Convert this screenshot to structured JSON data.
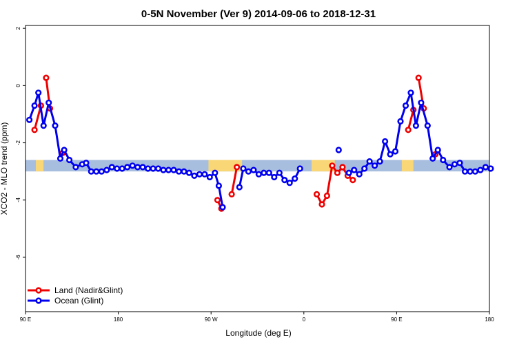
{
  "chart_data": {
    "type": "line",
    "title": "0-5N November (Ver 9)   2014-09-06 to 2018-12-31",
    "xlabel": "Longitude (deg E)",
    "ylabel": "XCO2 - MLO trend (ppm)",
    "xlim": [
      90,
      450
    ],
    "ylim": [
      -7.9,
      2.1
    ],
    "x_ticks": [
      {
        "value": 90,
        "label": "90 E"
      },
      {
        "value": 162,
        "label": "180"
      },
      {
        "value": 234,
        "label": "90 W"
      },
      {
        "value": 306,
        "label": "0"
      },
      {
        "value": 378,
        "label": "90 E"
      },
      {
        "value": 450,
        "label": "180"
      }
    ],
    "y_ticks": [
      {
        "value": 2,
        "label": "2"
      },
      {
        "value": 0,
        "label": "0"
      },
      {
        "value": -2,
        "label": "-2"
      },
      {
        "value": -4,
        "label": "-4"
      },
      {
        "value": -6,
        "label": "-6"
      }
    ],
    "grid": false,
    "legend_position": "bottom-left",
    "band": {
      "ymin": -3.0,
      "ymax": -2.6,
      "land_color": "#F9D776",
      "ocean_color": "#A7BEDF"
    },
    "band_land_segments": [
      [
        98,
        104
      ],
      [
        232,
        258
      ],
      [
        312,
        330
      ],
      [
        382,
        391
      ],
      [
        450,
        450
      ]
    ],
    "series": [
      {
        "name": "Land (Nadir&Glint)",
        "color": "#EE0000",
        "segments": [
          [
            [
              97,
              -1.55
            ],
            [
              102,
              -0.7
            ]
          ],
          [
            [
              106,
              0.27
            ],
            [
              109,
              -0.8
            ]
          ],
          [
            [
              119,
              -2.35
            ]
          ],
          [
            [
              239,
              -4.0
            ],
            [
              242,
              -4.3
            ]
          ],
          [
            [
              250,
              -3.8
            ],
            [
              254,
              -2.85
            ]
          ],
          [
            [
              316,
              -3.8
            ],
            [
              320,
              -4.15
            ],
            [
              324,
              -3.85
            ],
            [
              328,
              -2.8
            ],
            [
              332,
              -3.05
            ],
            [
              336,
              -2.85
            ],
            [
              340,
              -3.15
            ],
            [
              344,
              -3.3
            ]
          ],
          [
            [
              387,
              -1.55
            ],
            [
              391,
              -0.85
            ]
          ],
          [
            [
              395,
              0.27
            ],
            [
              399,
              -0.8
            ]
          ],
          [
            [
              408,
              -2.4
            ]
          ]
        ]
      },
      {
        "name": "Ocean (Glint)",
        "color": "#0000EE",
        "segments": [
          [
            [
              93,
              -1.2
            ],
            [
              97,
              -0.7
            ],
            [
              100,
              -0.25
            ],
            [
              104,
              -1.4
            ],
            [
              108,
              -0.6
            ],
            [
              113,
              -1.4
            ],
            [
              117,
              -2.55
            ],
            [
              120,
              -2.25
            ],
            [
              124,
              -2.6
            ],
            [
              129,
              -2.85
            ],
            [
              134,
              -2.75
            ],
            [
              137,
              -2.7
            ],
            [
              141,
              -3.0
            ],
            [
              145,
              -3.0
            ],
            [
              149,
              -3.0
            ],
            [
              153,
              -2.95
            ],
            [
              157,
              -2.85
            ],
            [
              161,
              -2.9
            ],
            [
              165,
              -2.9
            ],
            [
              169,
              -2.85
            ],
            [
              173,
              -2.8
            ],
            [
              177,
              -2.85
            ],
            [
              181,
              -2.85
            ],
            [
              185,
              -2.9
            ],
            [
              189,
              -2.9
            ],
            [
              193,
              -2.9
            ],
            [
              197,
              -2.95
            ],
            [
              201,
              -2.95
            ],
            [
              205,
              -2.95
            ],
            [
              209,
              -3.0
            ],
            [
              213,
              -3.0
            ],
            [
              217,
              -3.05
            ],
            [
              221,
              -3.15
            ],
            [
              225,
              -3.1
            ],
            [
              229,
              -3.1
            ],
            [
              233,
              -3.2
            ],
            [
              237,
              -3.05
            ],
            [
              240,
              -3.5
            ],
            [
              243,
              -4.25
            ]
          ],
          [
            [
              256,
              -3.55
            ],
            [
              259,
              -2.9
            ],
            [
              263,
              -3.0
            ],
            [
              267,
              -2.95
            ],
            [
              271,
              -3.1
            ],
            [
              275,
              -3.05
            ],
            [
              279,
              -3.05
            ],
            [
              283,
              -3.2
            ],
            [
              287,
              -3.05
            ],
            [
              291,
              -3.3
            ],
            [
              295,
              -3.4
            ],
            [
              299,
              -3.25
            ],
            [
              303,
              -2.9
            ]
          ],
          [
            [
              333,
              -2.25
            ]
          ],
          [
            [
              341,
              -3.05
            ],
            [
              345,
              -2.95
            ],
            [
              349,
              -3.1
            ],
            [
              353,
              -2.9
            ],
            [
              357,
              -2.65
            ],
            [
              361,
              -2.8
            ],
            [
              365,
              -2.65
            ],
            [
              369,
              -1.95
            ],
            [
              373,
              -2.4
            ],
            [
              377,
              -2.3
            ],
            [
              381,
              -1.25
            ],
            [
              385,
              -0.7
            ],
            [
              389,
              -0.25
            ],
            [
              393,
              -1.4
            ],
            [
              397,
              -0.6
            ],
            [
              402,
              -1.4
            ],
            [
              406,
              -2.55
            ],
            [
              410,
              -2.25
            ],
            [
              414,
              -2.6
            ],
            [
              419,
              -2.85
            ],
            [
              423,
              -2.75
            ],
            [
              427,
              -2.7
            ],
            [
              431,
              -3.0
            ],
            [
              435,
              -3.0
            ],
            [
              439,
              -3.0
            ],
            [
              443,
              -2.95
            ],
            [
              447,
              -2.85
            ],
            [
              451,
              -2.9
            ]
          ]
        ]
      }
    ]
  }
}
